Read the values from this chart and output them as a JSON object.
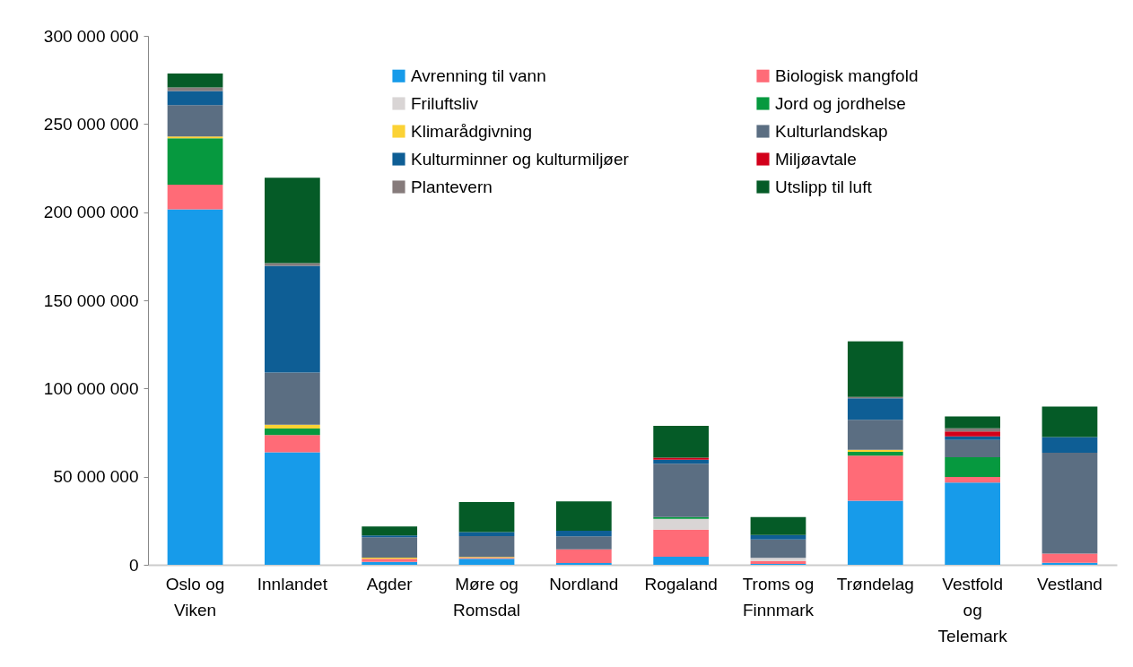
{
  "chart_data": {
    "type": "bar",
    "stacked": true,
    "categories": [
      "Oslo og Viken",
      "Innlandet",
      "Agder",
      "Møre og Romsdal",
      "Nordland",
      "Rogaland",
      "Troms og Finnmark",
      "Trøndelag",
      "Vestfold og Telemark",
      "Vestland"
    ],
    "series": [
      {
        "name": "Avrenning til vann",
        "color": "#179bea",
        "values": [
          201600000,
          63800000,
          1700000,
          3400000,
          1000000,
          4600000,
          500000,
          36400000,
          46600000,
          1200000
        ]
      },
      {
        "name": "Biologisk mangfold",
        "color": "#ff6b77",
        "values": [
          14000000,
          9800000,
          1700000,
          500000,
          7800000,
          15400000,
          1700000,
          25500000,
          3200000,
          5200000
        ]
      },
      {
        "name": "Friluftsliv",
        "color": "#d9d5d5",
        "values": [
          null,
          null,
          null,
          null,
          null,
          6100000,
          1700000,
          null,
          null,
          null
        ]
      },
      {
        "name": "Jord og jordhelse",
        "color": "#06993f",
        "values": [
          26300000,
          3700000,
          null,
          null,
          null,
          1000000,
          null,
          2200000,
          11200000,
          null
        ]
      },
      {
        "name": "Klimarådgivning",
        "color": "#fbd235",
        "values": [
          1000000,
          2200000,
          700000,
          500000,
          null,
          null,
          null,
          1100000,
          null,
          null
        ]
      },
      {
        "name": "Kulturlandskap",
        "color": "#5b6e82",
        "values": [
          17800000,
          29600000,
          11500000,
          11900000,
          7300000,
          30200000,
          10500000,
          17000000,
          9800000,
          57200000
        ]
      },
      {
        "name": "Kulturminner og kulturmiljøer",
        "color": "#0e5e95",
        "values": [
          8000000,
          60500000,
          1000000,
          2300000,
          3200000,
          2300000,
          2500000,
          12200000,
          2100000,
          8800000
        ]
      },
      {
        "name": "Miljøavtale",
        "color": "#d2001a",
        "values": [
          null,
          null,
          null,
          null,
          null,
          1100000,
          null,
          null,
          2700000,
          null
        ]
      },
      {
        "name": "Plantevern",
        "color": "#867b7b",
        "values": [
          2100000,
          1500000,
          null,
          null,
          null,
          null,
          null,
          800000,
          1800000,
          null
        ]
      },
      {
        "name": "Utslipp til luft",
        "color": "#055b27",
        "values": [
          7800000,
          48400000,
          5100000,
          17000000,
          16700000,
          18100000,
          10200000,
          31600000,
          6800000,
          17400000
        ]
      }
    ],
    "ylim": [
      0,
      300000000
    ],
    "yticks": [
      {
        "value": 0,
        "label": "0"
      },
      {
        "value": 50000000,
        "label": "50 000 000"
      },
      {
        "value": 100000000,
        "label": "100 000 000"
      },
      {
        "value": 150000000,
        "label": "150 000 000"
      },
      {
        "value": 200000000,
        "label": "200 000 000"
      },
      {
        "value": 250000000,
        "label": "250 000 000"
      },
      {
        "value": 300000000,
        "label": "300 000 000"
      }
    ],
    "grid": false,
    "legend": "top right"
  }
}
